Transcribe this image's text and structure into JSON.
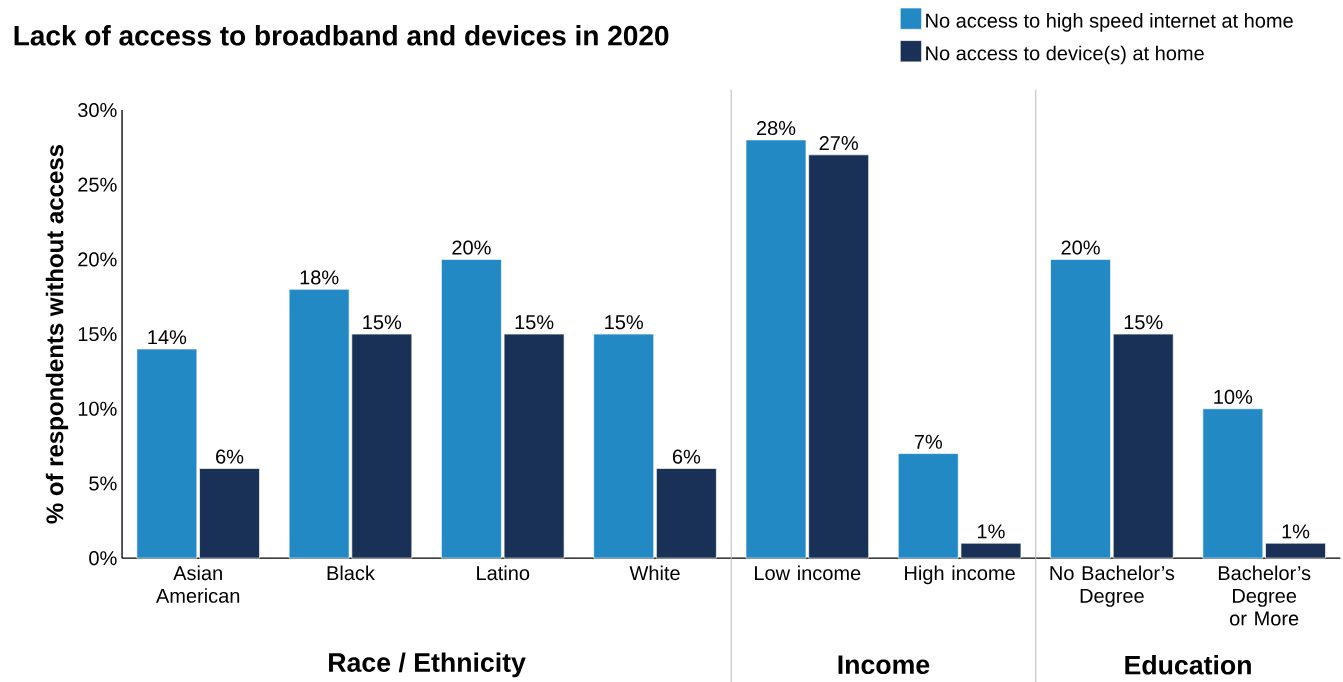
{
  "chart_data": {
    "type": "bar",
    "title": "Lack of access to broadband and devices in 2020",
    "ylabel": "% of respondents without access",
    "categories": [
      "Asian American",
      "Black",
      "Latino",
      "White",
      "Low income",
      "High income",
      "No Bachelor’s Degree",
      "Bachelor’s Degree or More"
    ],
    "series": [
      {
        "name": "No access to high speed internet at home",
        "color": "#2389c4",
        "values": [
          14,
          18,
          20,
          15,
          28,
          7,
          20,
          10
        ],
        "value_labels": [
          "14%",
          "18%",
          "20%",
          "15%",
          "28%",
          "7%",
          "20%",
          "10%"
        ]
      },
      {
        "name": "No access to device(s) at home",
        "color": "#1a3157",
        "values": [
          6,
          15,
          15,
          6,
          27,
          1,
          15,
          1
        ],
        "value_labels": [
          "6%",
          "15%",
          "15%",
          "6%",
          "27%",
          "1%",
          "15%",
          "1%"
        ]
      }
    ],
    "ylim": [
      0,
      30
    ],
    "yticks": [
      {
        "value": 0,
        "label": "0%"
      },
      {
        "value": 5,
        "label": "5%"
      },
      {
        "value": 10,
        "label": "10%"
      },
      {
        "value": 15,
        "label": "15%"
      },
      {
        "value": 20,
        "label": "20%"
      },
      {
        "value": 25,
        "label": "25%"
      },
      {
        "value": 30,
        "label": "30%"
      }
    ],
    "annotations": [
      "Race / Ethnicity",
      "Income",
      "Education"
    ],
    "legend": "top right",
    "grid": false
  }
}
